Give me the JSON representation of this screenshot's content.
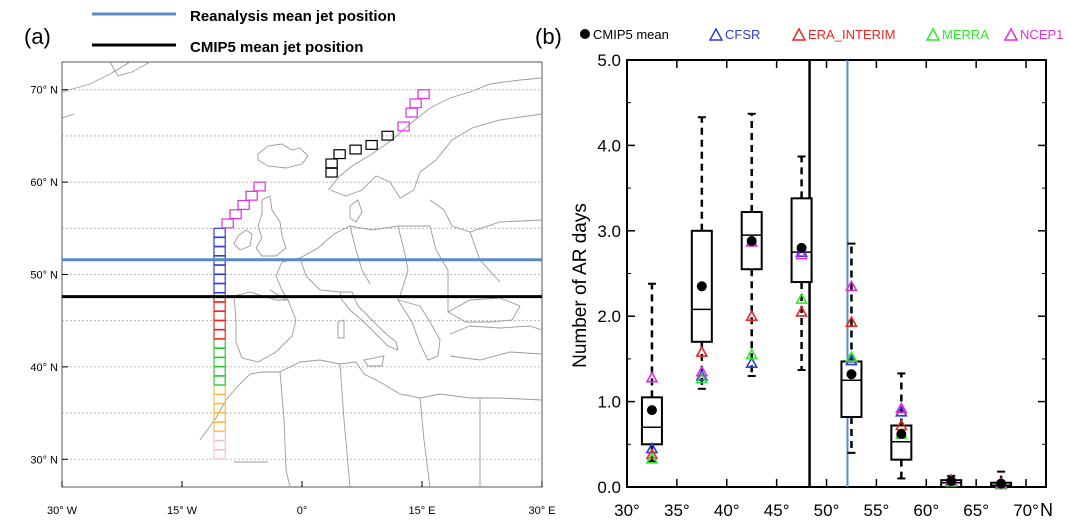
{
  "panel_a": {
    "label": "(a)",
    "legend": [
      {
        "label": "Reanalysis mean jet position",
        "color": "#5b8ac4"
      },
      {
        "label": "CMIP5 mean jet position",
        "color": "#000000"
      }
    ],
    "lat_ticks": [
      "70° N",
      "60° N",
      "50° N",
      "40° N",
      "30° N"
    ],
    "lon_ticks": [
      "30° W",
      "15° W",
      "0°",
      "15° E",
      "30° E"
    ]
  },
  "panel_b": {
    "label": "(b)",
    "legend": [
      {
        "label": "CMIP5 mean",
        "color": "#000000",
        "marker": "dot"
      },
      {
        "label": "CFSR",
        "color": "#2b3fd6",
        "marker": "triangle"
      },
      {
        "label": "ERA_INTERIM",
        "color": "#e8281e",
        "marker": "triangle"
      },
      {
        "label": "MERRA",
        "color": "#2ee82e",
        "marker": "triangle"
      },
      {
        "label": "NCEP1",
        "color": "#e02ee0",
        "marker": "triangle"
      }
    ]
  },
  "chart_data": [
    {
      "type": "map",
      "lon_range": [
        -30,
        30
      ],
      "lat_range": [
        27,
        73
      ],
      "lat_gridlines": [
        30,
        35,
        40,
        45,
        50,
        55,
        60,
        65,
        70
      ],
      "reanalysis_jet_lat": 51.6,
      "cmip5_jet_lat": 47.6,
      "boxes": [
        {
          "lon": -11,
          "lat": 30,
          "color": "#f9c0cf"
        },
        {
          "lon": -11,
          "lat": 31,
          "color": "#f9c0cf"
        },
        {
          "lon": -11,
          "lat": 32,
          "color": "#f9c0cf"
        },
        {
          "lon": -11,
          "lat": 33,
          "color": "#f2c04a"
        },
        {
          "lon": -11,
          "lat": 34,
          "color": "#f2c04a"
        },
        {
          "lon": -11,
          "lat": 35,
          "color": "#f2c04a"
        },
        {
          "lon": -11,
          "lat": 36,
          "color": "#f2c04a"
        },
        {
          "lon": -11,
          "lat": 37,
          "color": "#f2c04a"
        },
        {
          "lon": -11,
          "lat": 38,
          "color": "#2ec82e"
        },
        {
          "lon": -11,
          "lat": 39,
          "color": "#2ec82e"
        },
        {
          "lon": -11,
          "lat": 40,
          "color": "#2ec82e"
        },
        {
          "lon": -11,
          "lat": 41,
          "color": "#2ec82e"
        },
        {
          "lon": -11,
          "lat": 42,
          "color": "#2ec82e"
        },
        {
          "lon": -11,
          "lat": 43,
          "color": "#e8281e"
        },
        {
          "lon": -11,
          "lat": 44,
          "color": "#e8281e"
        },
        {
          "lon": -11,
          "lat": 45,
          "color": "#e8281e"
        },
        {
          "lon": -11,
          "lat": 46,
          "color": "#e8281e"
        },
        {
          "lon": -11,
          "lat": 47,
          "color": "#e8281e"
        },
        {
          "lon": -11,
          "lat": 48,
          "color": "#2b3fd6"
        },
        {
          "lon": -11,
          "lat": 49,
          "color": "#2b3fd6"
        },
        {
          "lon": -11,
          "lat": 50,
          "color": "#2b3fd6"
        },
        {
          "lon": -11,
          "lat": 51,
          "color": "#2b3fd6"
        },
        {
          "lon": -11,
          "lat": 52,
          "color": "#2b3fd6"
        },
        {
          "lon": -11,
          "lat": 53,
          "color": "#2b3fd6"
        },
        {
          "lon": -11,
          "lat": 54,
          "color": "#2b3fd6"
        },
        {
          "lon": -10,
          "lat": 55,
          "color": "#e02ee0"
        },
        {
          "lon": -9,
          "lat": 56,
          "color": "#e02ee0"
        },
        {
          "lon": -8,
          "lat": 57,
          "color": "#e02ee0"
        },
        {
          "lon": -7,
          "lat": 58,
          "color": "#e02ee0"
        },
        {
          "lon": -6,
          "lat": 59,
          "color": "#e02ee0"
        },
        {
          "lon": 3,
          "lat": 60.5,
          "color": "#000000"
        },
        {
          "lon": 3,
          "lat": 61.5,
          "color": "#000000"
        },
        {
          "lon": 4,
          "lat": 62.5,
          "color": "#000000"
        },
        {
          "lon": 6,
          "lat": 63,
          "color": "#000000"
        },
        {
          "lon": 8,
          "lat": 63.5,
          "color": "#000000"
        },
        {
          "lon": 10,
          "lat": 64.5,
          "color": "#000000"
        },
        {
          "lon": 12,
          "lat": 65.5,
          "color": "#e02ee0"
        },
        {
          "lon": 13,
          "lat": 67,
          "color": "#e02ee0"
        },
        {
          "lon": 13.5,
          "lat": 68,
          "color": "#e02ee0"
        },
        {
          "lon": 14.5,
          "lat": 69,
          "color": "#e02ee0"
        }
      ]
    },
    {
      "type": "box",
      "xlabel": "N",
      "ylabel": "Number of AR days",
      "xlim": [
        30,
        72
      ],
      "ylim": [
        0,
        5
      ],
      "x_ticks": [
        30,
        35,
        40,
        45,
        50,
        55,
        60,
        65,
        70
      ],
      "x_tick_labels": [
        "30°",
        "35°",
        "40°",
        "45°",
        "50°",
        "55°",
        "60°",
        "65°",
        "70°"
      ],
      "y_ticks": [
        0,
        1,
        2,
        3,
        4,
        5
      ],
      "y_tick_labels": [
        "0.0",
        "1.0",
        "2.0",
        "3.0",
        "4.0",
        "5.0"
      ],
      "cmip5_jet_lat": 48.3,
      "reanalysis_jet_lat": 52.1,
      "boxes": [
        {
          "x": 32.5,
          "whisker_low": 0.3,
          "q1": 0.5,
          "median": 0.7,
          "q3": 1.05,
          "whisker_high": 2.38,
          "mean": 0.9
        },
        {
          "x": 37.5,
          "whisker_low": 1.15,
          "q1": 1.7,
          "median": 2.08,
          "q3": 3.0,
          "whisker_high": 4.33,
          "mean": 2.35
        },
        {
          "x": 42.5,
          "whisker_low": 1.3,
          "q1": 2.55,
          "median": 2.95,
          "q3": 3.22,
          "whisker_high": 4.37,
          "mean": 2.88
        },
        {
          "x": 47.5,
          "whisker_low": 1.37,
          "q1": 2.4,
          "median": 2.75,
          "q3": 3.38,
          "whisker_high": 3.87,
          "mean": 2.8
        },
        {
          "x": 52.5,
          "whisker_low": 0.4,
          "q1": 0.82,
          "median": 1.25,
          "q3": 1.47,
          "whisker_high": 2.85,
          "mean": 1.32
        },
        {
          "x": 57.5,
          "whisker_low": 0.1,
          "q1": 0.32,
          "median": 0.53,
          "q3": 0.72,
          "whisker_high": 1.33,
          "mean": 0.62
        },
        {
          "x": 62.5,
          "whisker_low": 0.0,
          "q1": 0.0,
          "median": 0.05,
          "q3": 0.08,
          "whisker_high": 0.13,
          "mean": 0.07
        },
        {
          "x": 67.5,
          "whisker_low": 0.0,
          "q1": 0.0,
          "median": 0.02,
          "q3": 0.05,
          "whisker_high": 0.18,
          "mean": 0.04
        }
      ],
      "series": [
        {
          "name": "CFSR",
          "values": [
            0.45,
            1.3,
            1.45,
            2.75,
            1.48,
            0.88,
            0.07,
            0.03
          ]
        },
        {
          "name": "ERA_INTERIM",
          "values": [
            0.38,
            1.58,
            2.0,
            2.05,
            1.93,
            0.72,
            0.08,
            0.04
          ]
        },
        {
          "name": "MERRA",
          "values": [
            0.33,
            1.27,
            1.55,
            2.2,
            1.52,
            0.62,
            0.06,
            0.03
          ]
        },
        {
          "name": "NCEP1",
          "values": [
            1.28,
            1.35,
            2.87,
            2.72,
            2.35,
            0.92,
            0.08,
            0.04
          ]
        }
      ]
    }
  ]
}
